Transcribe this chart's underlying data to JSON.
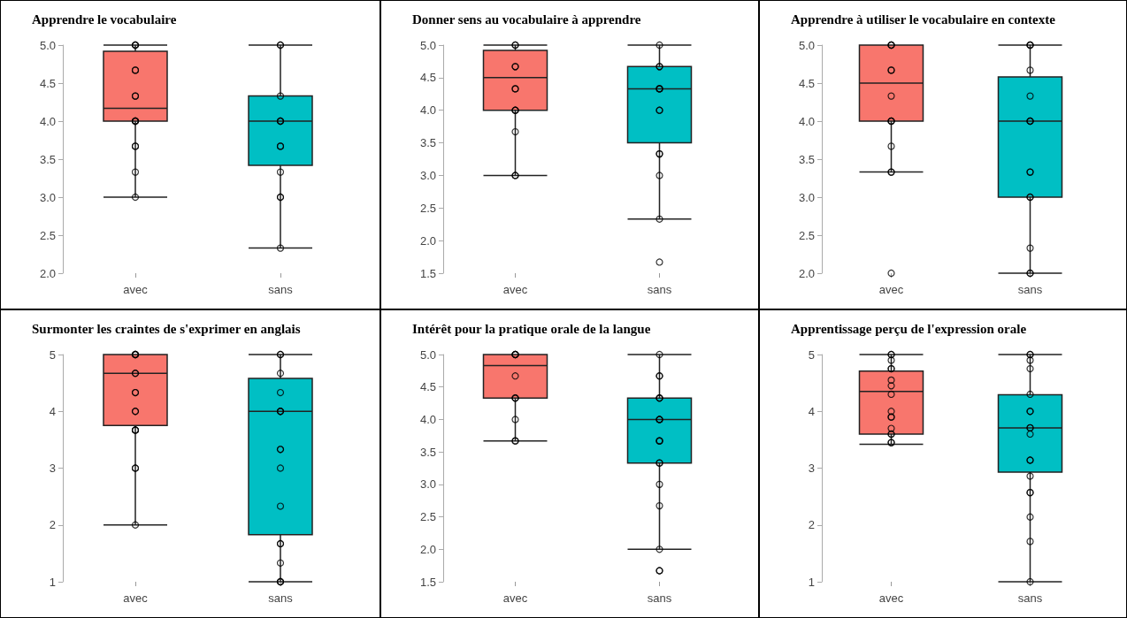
{
  "chart_data": [
    {
      "type": "box",
      "title": "Apprendre le vocabulaire",
      "categories": [
        "avec",
        "sans"
      ],
      "colors": [
        "#f8766d",
        "#00bfc4"
      ],
      "grid": false,
      "marker": "circle",
      "ylim": [
        2,
        5
      ],
      "yticks": [
        {
          "value": 2,
          "label": "2.0"
        },
        {
          "value": 2.5,
          "label": "2.5"
        },
        {
          "value": 3,
          "label": "3.0"
        },
        {
          "value": 3.5,
          "label": "3.5"
        },
        {
          "value": 4,
          "label": "4.0"
        },
        {
          "value": 4.5,
          "label": "4.5"
        },
        {
          "value": 5,
          "label": "5.0"
        }
      ],
      "boxes": [
        {
          "low": 3,
          "q1": 4,
          "median": 4.17,
          "q3": 4.92,
          "high": 5
        },
        {
          "low": 2.33,
          "q1": 3.42,
          "median": 4,
          "q3": 4.33,
          "high": 5
        }
      ],
      "series": [
        {
          "type": "scatter",
          "color": "#000000",
          "x": [
            "avec",
            "avec",
            "avec",
            "avec",
            "avec",
            "avec",
            "avec",
            "avec",
            "avec",
            "avec",
            "avec",
            "avec",
            "avec",
            "avec",
            "avec",
            "sans",
            "sans",
            "sans",
            "sans",
            "sans",
            "sans",
            "sans",
            "sans",
            "sans",
            "sans",
            "sans",
            "sans"
          ],
          "values": [
            5,
            5,
            5,
            4.67,
            4.67,
            4.33,
            4.33,
            4,
            4,
            4,
            4,
            3.67,
            3.67,
            3.33,
            3,
            5,
            5,
            4.33,
            4,
            4,
            4,
            3.67,
            3.67,
            3.33,
            3,
            3,
            2.33
          ]
        }
      ]
    },
    {
      "type": "box",
      "title": "Donner sens au vocabulaire à apprendre",
      "categories": [
        "avec",
        "sans"
      ],
      "colors": [
        "#f8766d",
        "#00bfc4"
      ],
      "grid": false,
      "marker": "circle",
      "ylim": [
        1.5,
        5
      ],
      "yticks": [
        {
          "value": 1.5,
          "label": "1.5"
        },
        {
          "value": 2,
          "label": "2.0"
        },
        {
          "value": 2.5,
          "label": "2.5"
        },
        {
          "value": 3,
          "label": "3.0"
        },
        {
          "value": 3.5,
          "label": "3.5"
        },
        {
          "value": 4,
          "label": "4.0"
        },
        {
          "value": 4.5,
          "label": "4.5"
        },
        {
          "value": 5,
          "label": "5.0"
        }
      ],
      "boxes": [
        {
          "low": 3,
          "q1": 4,
          "median": 4.5,
          "q3": 4.92,
          "high": 5
        },
        {
          "low": 2.33,
          "q1": 3.5,
          "median": 4.33,
          "q3": 4.67,
          "high": 5
        }
      ],
      "series": [
        {
          "type": "scatter",
          "color": "#000000",
          "x": [
            "avec",
            "avec",
            "avec",
            "avec",
            "avec",
            "avec",
            "avec",
            "avec",
            "avec",
            "avec",
            "avec",
            "avec",
            "sans",
            "sans",
            "sans",
            "sans",
            "sans",
            "sans",
            "sans",
            "sans",
            "sans",
            "sans",
            "sans",
            "sans",
            "sans"
          ],
          "values": [
            5,
            5,
            4.67,
            4.67,
            4.33,
            4.33,
            4,
            4,
            4,
            3.67,
            3,
            3,
            5,
            4.67,
            4.67,
            4.33,
            4.33,
            4.33,
            4,
            4,
            3.33,
            3.33,
            3,
            2.33,
            1.67
          ]
        }
      ]
    },
    {
      "type": "box",
      "title": "Apprendre à utiliser le vocabulaire en contexte",
      "categories": [
        "avec",
        "sans"
      ],
      "colors": [
        "#f8766d",
        "#00bfc4"
      ],
      "grid": false,
      "marker": "circle",
      "ylim": [
        2,
        5
      ],
      "yticks": [
        {
          "value": 2,
          "label": "2.0"
        },
        {
          "value": 2.5,
          "label": "2.5"
        },
        {
          "value": 3,
          "label": "3.0"
        },
        {
          "value": 3.5,
          "label": "3.5"
        },
        {
          "value": 4,
          "label": "4.0"
        },
        {
          "value": 4.5,
          "label": "4.5"
        },
        {
          "value": 5,
          "label": "5.0"
        }
      ],
      "boxes": [
        {
          "low": 3.33,
          "q1": 4,
          "median": 4.5,
          "q3": 5,
          "high": 5
        },
        {
          "low": 2,
          "q1": 3,
          "median": 4,
          "q3": 4.58,
          "high": 5
        }
      ],
      "series": [
        {
          "type": "scatter",
          "color": "#000000",
          "x": [
            "avec",
            "avec",
            "avec",
            "avec",
            "avec",
            "avec",
            "avec",
            "avec",
            "avec",
            "avec",
            "avec",
            "avec",
            "avec",
            "sans",
            "sans",
            "sans",
            "sans",
            "sans",
            "sans",
            "sans",
            "sans",
            "sans",
            "sans",
            "sans",
            "sans",
            "sans",
            "sans",
            "sans"
          ],
          "values": [
            5,
            5,
            5,
            4.67,
            4.67,
            4.33,
            4,
            4,
            4,
            3.67,
            3.33,
            3.33,
            2,
            5,
            5,
            5,
            4.67,
            4.33,
            4,
            4,
            4,
            3.33,
            3.33,
            3,
            3,
            2.33,
            2,
            2
          ]
        }
      ]
    },
    {
      "type": "box",
      "title": "Surmonter les craintes de s'exprimer en anglais",
      "categories": [
        "avec",
        "sans"
      ],
      "colors": [
        "#f8766d",
        "#00bfc4"
      ],
      "grid": false,
      "marker": "circle",
      "ylim": [
        1,
        5
      ],
      "yticks": [
        1,
        2,
        3,
        4,
        5
      ],
      "boxes": [
        {
          "low": 2,
          "q1": 3.75,
          "median": 4.67,
          "q3": 5,
          "high": 5
        },
        {
          "low": 1,
          "q1": 1.83,
          "median": 4,
          "q3": 4.58,
          "high": 5
        }
      ],
      "series": [
        {
          "type": "scatter",
          "color": "#000000",
          "x": [
            "avec",
            "avec",
            "avec",
            "avec",
            "avec",
            "avec",
            "avec",
            "avec",
            "avec",
            "avec",
            "avec",
            "avec",
            "avec",
            "avec",
            "avec",
            "avec",
            "sans",
            "sans",
            "sans",
            "sans",
            "sans",
            "sans",
            "sans",
            "sans",
            "sans",
            "sans",
            "sans",
            "sans",
            "sans",
            "sans",
            "sans",
            "sans",
            "sans"
          ],
          "values": [
            5,
            5,
            5,
            5,
            4.67,
            4.67,
            4.33,
            4.33,
            4,
            4,
            3.67,
            3.67,
            3.67,
            3,
            3,
            2,
            5,
            5,
            4.67,
            4.33,
            4,
            4,
            4,
            3.33,
            3.33,
            3,
            2.33,
            1.67,
            1.67,
            1.33,
            1,
            1,
            1
          ]
        }
      ]
    },
    {
      "type": "box",
      "title": "Intérêt pour la pratique orale de la langue",
      "categories": [
        "avec",
        "sans"
      ],
      "colors": [
        "#f8766d",
        "#00bfc4"
      ],
      "grid": false,
      "marker": "circle",
      "ylim": [
        1.5,
        5
      ],
      "yticks": [
        {
          "value": 1.5,
          "label": "1.5"
        },
        {
          "value": 2,
          "label": "2.0"
        },
        {
          "value": 2.5,
          "label": "2.5"
        },
        {
          "value": 3,
          "label": "3.0"
        },
        {
          "value": 3.5,
          "label": "3.5"
        },
        {
          "value": 4,
          "label": "4.0"
        },
        {
          "value": 4.5,
          "label": "4.5"
        },
        {
          "value": 5,
          "label": "5.0"
        }
      ],
      "boxes": [
        {
          "low": 3.67,
          "q1": 4.33,
          "median": 4.83,
          "q3": 5,
          "high": 5
        },
        {
          "low": 2,
          "q1": 3.33,
          "median": 4,
          "q3": 4.33,
          "high": 5
        }
      ],
      "series": [
        {
          "type": "scatter",
          "color": "#000000",
          "x": [
            "avec",
            "avec",
            "avec",
            "avec",
            "avec",
            "avec",
            "avec",
            "avec",
            "avec",
            "avec",
            "avec",
            "sans",
            "sans",
            "sans",
            "sans",
            "sans",
            "sans",
            "sans",
            "sans",
            "sans",
            "sans",
            "sans",
            "sans",
            "sans",
            "sans",
            "sans",
            "sans",
            "sans",
            "sans",
            "sans"
          ],
          "values": [
            5,
            5,
            5,
            5,
            4.67,
            4.33,
            4.33,
            4.33,
            4,
            3.67,
            3.67,
            5,
            4.67,
            4.67,
            4.33,
            4.33,
            4.33,
            4,
            4,
            4,
            3.67,
            3.67,
            3.67,
            3.33,
            3.33,
            3,
            2.67,
            2,
            1.67,
            1.67
          ]
        }
      ]
    },
    {
      "type": "box",
      "title": "Apprentissage perçu de l'expression orale",
      "categories": [
        "avec",
        "sans"
      ],
      "colors": [
        "#f8766d",
        "#00bfc4"
      ],
      "grid": false,
      "marker": "circle",
      "ylim": [
        1,
        5
      ],
      "yticks": [
        1,
        2,
        3,
        4,
        5
      ],
      "boxes": [
        {
          "low": 3.42,
          "q1": 3.6,
          "median": 4.35,
          "q3": 4.71,
          "high": 5
        },
        {
          "low": 1,
          "q1": 2.93,
          "median": 3.71,
          "q3": 4.29,
          "high": 5
        }
      ],
      "series": [
        {
          "type": "scatter",
          "color": "#000000",
          "x": [
            "avec",
            "avec",
            "avec",
            "avec",
            "avec",
            "avec",
            "avec",
            "avec",
            "avec",
            "avec",
            "avec",
            "avec",
            "avec",
            "avec",
            "avec",
            "avec",
            "sans",
            "sans",
            "sans",
            "sans",
            "sans",
            "sans",
            "sans",
            "sans",
            "sans",
            "sans",
            "sans",
            "sans",
            "sans",
            "sans",
            "sans",
            "sans",
            "sans",
            "sans"
          ],
          "values": [
            5,
            5,
            4.9,
            4.75,
            4.75,
            4.55,
            4.45,
            4.3,
            4,
            3.9,
            3.9,
            3.7,
            3.6,
            3.6,
            3.45,
            3.45,
            5,
            5,
            4.9,
            4.75,
            4.3,
            4,
            4,
            3.71,
            3.71,
            3.6,
            3.14,
            3.14,
            2.86,
            2.57,
            2.57,
            2.14,
            1.71,
            1
          ]
        }
      ]
    }
  ]
}
